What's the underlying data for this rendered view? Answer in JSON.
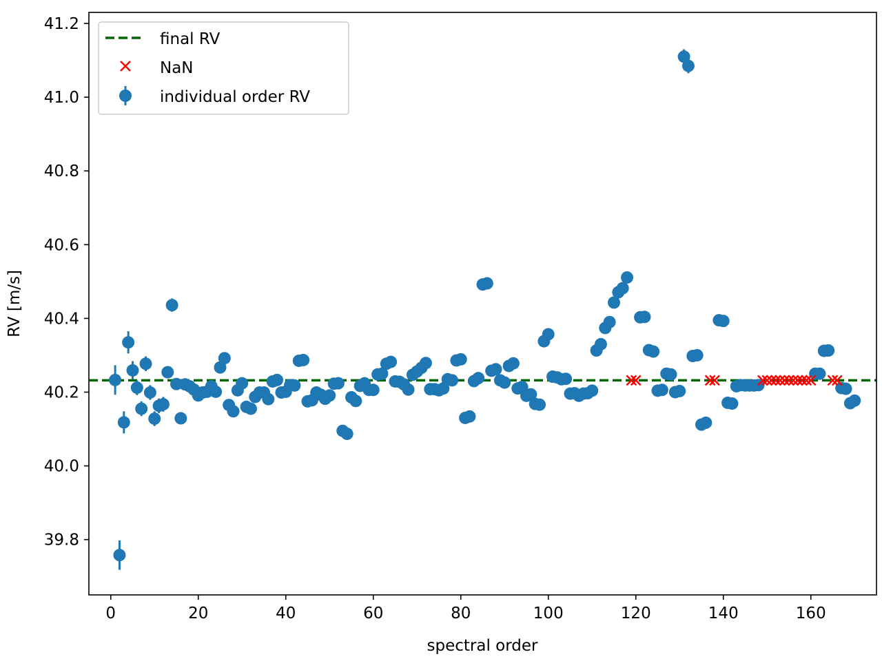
{
  "chart_data": {
    "type": "scatter",
    "title": "",
    "xlabel": "spectral order",
    "ylabel": "RV [m/s]",
    "xlim": [
      -5,
      175
    ],
    "ylim": [
      39.65,
      41.23
    ],
    "xticks": [
      0,
      20,
      40,
      60,
      80,
      100,
      120,
      140,
      160
    ],
    "yticks": [
      39.8,
      40.0,
      40.2,
      40.4,
      40.6,
      40.8,
      41.0,
      41.2
    ],
    "ytick_labels": [
      "39.8",
      "40.0",
      "40.2",
      "40.4",
      "40.6",
      "40.8",
      "41.0",
      "41.2"
    ],
    "grid": false,
    "legend_position": "top-left",
    "legend": [
      "final RV",
      "NaN",
      "individual order RV"
    ],
    "final_rv": {
      "name": "final RV",
      "value": 40.232,
      "color": "#006400",
      "style": "dashed"
    },
    "nan": {
      "name": "NaN",
      "color": "#ff0000",
      "marker": "x",
      "x": [
        119,
        120,
        137,
        138,
        149,
        150,
        151,
        152,
        153,
        154,
        155,
        156,
        157,
        158,
        159,
        160,
        165,
        166
      ],
      "y": [
        40.232,
        40.232,
        40.232,
        40.232,
        40.232,
        40.232,
        40.232,
        40.232,
        40.232,
        40.232,
        40.232,
        40.232,
        40.232,
        40.232,
        40.232,
        40.232,
        40.232,
        40.232
      ]
    },
    "series": [
      {
        "name": "individual order RV",
        "color": "#1f77b4",
        "marker": "o",
        "points": [
          [
            1,
            40.233,
            0.04
          ],
          [
            2,
            39.758,
            0.04
          ],
          [
            3,
            40.118,
            0.03
          ],
          [
            4,
            40.335,
            0.03
          ],
          [
            5,
            40.259,
            0.025
          ],
          [
            6,
            40.212,
            0.02
          ],
          [
            7,
            40.155,
            0.02
          ],
          [
            8,
            40.277,
            0.02
          ],
          [
            9,
            40.199,
            0.02
          ],
          [
            10,
            40.128,
            0.02
          ],
          [
            11,
            40.163,
            0.02
          ],
          [
            12,
            40.167,
            0.02
          ],
          [
            13,
            40.254,
            0.015
          ],
          [
            14,
            40.436,
            0.018
          ],
          [
            15,
            40.222,
            0.015
          ],
          [
            16,
            40.129,
            0.015
          ],
          [
            17,
            40.221,
            0.01
          ],
          [
            18,
            40.216,
            0.01
          ],
          [
            19,
            40.207,
            0.01
          ],
          [
            20,
            40.191,
            0.01
          ],
          [
            21,
            40.199,
            0.01
          ],
          [
            22,
            40.201,
            0.01
          ],
          [
            23,
            40.216,
            0.01
          ],
          [
            24,
            40.201,
            0.01
          ],
          [
            25,
            40.267,
            0.01
          ],
          [
            26,
            40.292,
            0.01
          ],
          [
            27,
            40.165,
            0.01
          ],
          [
            28,
            40.148,
            0.01
          ],
          [
            29,
            40.205,
            0.01
          ],
          [
            30,
            40.224,
            0.01
          ],
          [
            31,
            40.16,
            0.01
          ],
          [
            32,
            40.155,
            0.01
          ],
          [
            33,
            40.187,
            0.01
          ],
          [
            34,
            40.199,
            0.01
          ],
          [
            35,
            40.199,
            0.01
          ],
          [
            36,
            40.181,
            0.01
          ],
          [
            37,
            40.229,
            0.01
          ],
          [
            38,
            40.233,
            0.01
          ],
          [
            39,
            40.199,
            0.01
          ],
          [
            40,
            40.201,
            0.01
          ],
          [
            41,
            40.219,
            0.01
          ],
          [
            42,
            40.218,
            0.01
          ],
          [
            43,
            40.285,
            0.01
          ],
          [
            44,
            40.287,
            0.01
          ],
          [
            45,
            40.175,
            0.01
          ],
          [
            46,
            40.178,
            0.01
          ],
          [
            47,
            40.199,
            0.01
          ],
          [
            48,
            40.193,
            0.01
          ],
          [
            49,
            40.182,
            0.01
          ],
          [
            50,
            40.191,
            0.01
          ],
          [
            51,
            40.223,
            0.01
          ],
          [
            52,
            40.224,
            0.01
          ],
          [
            53,
            40.095,
            0.01
          ],
          [
            54,
            40.087,
            0.01
          ],
          [
            55,
            40.186,
            0.01
          ],
          [
            56,
            40.176,
            0.01
          ],
          [
            57,
            40.217,
            0.01
          ],
          [
            58,
            40.224,
            0.01
          ],
          [
            59,
            40.206,
            0.01
          ],
          [
            60,
            40.206,
            0.01
          ],
          [
            61,
            40.248,
            0.01
          ],
          [
            62,
            40.25,
            0.01
          ],
          [
            63,
            40.277,
            0.01
          ],
          [
            64,
            40.282,
            0.01
          ],
          [
            65,
            40.229,
            0.01
          ],
          [
            66,
            40.228,
            0.01
          ],
          [
            67,
            40.221,
            0.01
          ],
          [
            68,
            40.207,
            0.01
          ],
          [
            69,
            40.247,
            0.01
          ],
          [
            70,
            40.256,
            0.01
          ],
          [
            71,
            40.266,
            0.01
          ],
          [
            72,
            40.279,
            0.01
          ],
          [
            73,
            40.208,
            0.01
          ],
          [
            74,
            40.208,
            0.01
          ],
          [
            75,
            40.205,
            0.01
          ],
          [
            76,
            40.21,
            0.01
          ],
          [
            77,
            40.235,
            0.01
          ],
          [
            78,
            40.232,
            0.01
          ],
          [
            79,
            40.286,
            0.01
          ],
          [
            80,
            40.289,
            0.01
          ],
          [
            81,
            40.13,
            0.01
          ],
          [
            82,
            40.134,
            0.01
          ],
          [
            83,
            40.23,
            0.01
          ],
          [
            84,
            40.238,
            0.01
          ],
          [
            85,
            40.492,
            0.01
          ],
          [
            86,
            40.495,
            0.01
          ],
          [
            87,
            40.258,
            0.01
          ],
          [
            88,
            40.262,
            0.01
          ],
          [
            89,
            40.232,
            0.01
          ],
          [
            90,
            40.226,
            0.01
          ],
          [
            91,
            40.271,
            0.01
          ],
          [
            92,
            40.278,
            0.01
          ],
          [
            93,
            40.21,
            0.01
          ],
          [
            94,
            40.214,
            0.01
          ],
          [
            95,
            40.19,
            0.01
          ],
          [
            96,
            40.194,
            0.01
          ],
          [
            97,
            40.168,
            0.01
          ],
          [
            98,
            40.166,
            0.01
          ],
          [
            99,
            40.338,
            0.01
          ],
          [
            100,
            40.357,
            0.01
          ],
          [
            101,
            40.242,
            0.01
          ],
          [
            102,
            40.24,
            0.01
          ],
          [
            103,
            40.235,
            0.01
          ],
          [
            104,
            40.236,
            0.01
          ],
          [
            105,
            40.196,
            0.01
          ],
          [
            106,
            40.197,
            0.01
          ],
          [
            107,
            40.19,
            0.01
          ],
          [
            108,
            40.196,
            0.01
          ],
          [
            109,
            40.197,
            0.01
          ],
          [
            110,
            40.204,
            0.01
          ],
          [
            111,
            40.313,
            0.01
          ],
          [
            112,
            40.33,
            0.01
          ],
          [
            113,
            40.374,
            0.01
          ],
          [
            114,
            40.39,
            0.01
          ],
          [
            115,
            40.443,
            0.01
          ],
          [
            116,
            40.471,
            0.01
          ],
          [
            117,
            40.482,
            0.01
          ],
          [
            118,
            40.511,
            0.01
          ],
          [
            121,
            40.403,
            0.01
          ],
          [
            122,
            40.404,
            0.01
          ],
          [
            123,
            40.314,
            0.01
          ],
          [
            124,
            40.31,
            0.01
          ],
          [
            125,
            40.204,
            0.01
          ],
          [
            126,
            40.206,
            0.01
          ],
          [
            127,
            40.25,
            0.01
          ],
          [
            128,
            40.248,
            0.01
          ],
          [
            129,
            40.2,
            0.01
          ],
          [
            130,
            40.203,
            0.01
          ],
          [
            131,
            41.11,
            0.02
          ],
          [
            132,
            41.085,
            0.02
          ],
          [
            133,
            40.298,
            0.01
          ],
          [
            134,
            40.3,
            0.01
          ],
          [
            135,
            40.112,
            0.01
          ],
          [
            136,
            40.117,
            0.01
          ],
          [
            139,
            40.395,
            0.01
          ],
          [
            140,
            40.393,
            0.01
          ],
          [
            141,
            40.171,
            0.01
          ],
          [
            142,
            40.169,
            0.01
          ],
          [
            143,
            40.216,
            0.01
          ],
          [
            144,
            40.219,
            0.01
          ],
          [
            145,
            40.218,
            0.01
          ],
          [
            146,
            40.218,
            0.01
          ],
          [
            147,
            40.218,
            0.01
          ],
          [
            148,
            40.219,
            0.01
          ],
          [
            161,
            40.25,
            0.01
          ],
          [
            162,
            40.25,
            0.01
          ],
          [
            163,
            40.312,
            0.01
          ],
          [
            164,
            40.313,
            0.01
          ],
          [
            167,
            40.211,
            0.01
          ],
          [
            168,
            40.209,
            0.01
          ],
          [
            169,
            40.17,
            0.01
          ],
          [
            170,
            40.177,
            0.01
          ]
        ]
      }
    ]
  }
}
